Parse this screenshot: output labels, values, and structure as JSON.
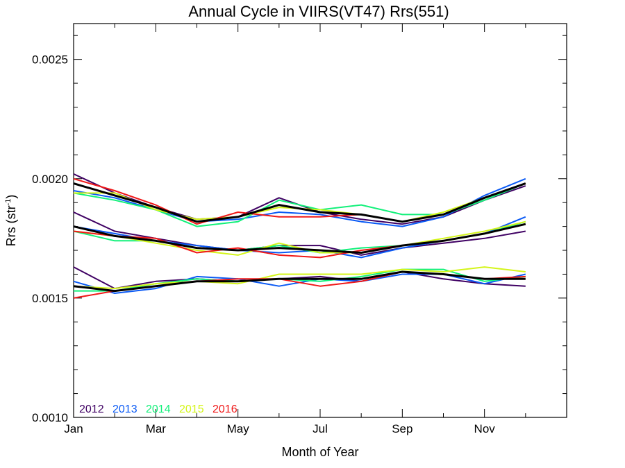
{
  "chart_data": {
    "type": "line",
    "title": "Annual Cycle in VIIRS(VT47) Rrs(551)",
    "xlabel": "Month of Year",
    "ylabel_main": "Rrs (str",
    "ylabel_sup": "-1",
    "ylabel_close": ")",
    "xlim": [
      1,
      13
    ],
    "ylim": [
      0.001,
      0.00265
    ],
    "xticks": [
      {
        "value": 1,
        "label": "Jan"
      },
      {
        "value": 3,
        "label": "Mar"
      },
      {
        "value": 5,
        "label": "May"
      },
      {
        "value": 7,
        "label": "Jul"
      },
      {
        "value": 9,
        "label": "Sep"
      },
      {
        "value": 11,
        "label": "Nov"
      }
    ],
    "x_minor_ticks": [
      2,
      4,
      6,
      8,
      10,
      12
    ],
    "yticks": [
      {
        "value": 0.001,
        "label": "0.0010"
      },
      {
        "value": 0.0015,
        "label": "0.0015"
      },
      {
        "value": 0.002,
        "label": "0.0020"
      },
      {
        "value": 0.0025,
        "label": "0.0025"
      }
    ],
    "y_minor_ticks": [
      0.0011,
      0.0012,
      0.0013,
      0.0014,
      0.0016,
      0.0017,
      0.0018,
      0.0019,
      0.0021,
      0.0022,
      0.0023,
      0.0024,
      0.0026
    ],
    "x": [
      1,
      2,
      3,
      4,
      5,
      6,
      7,
      8,
      9,
      10,
      11,
      12
    ],
    "legend_placement": "bottom-left",
    "groups": [
      {
        "series": [
          {
            "name": "2012",
            "color": "#3f0063",
            "values": [
              0.00202,
              0.00194,
              0.00188,
              0.00183,
              0.00184,
              0.00192,
              0.00186,
              0.00183,
              0.00181,
              0.00184,
              0.00191,
              0.00197
            ]
          },
          {
            "name": "2013",
            "color": "#0a5af5",
            "values": [
              0.00195,
              0.00192,
              0.00187,
              0.00182,
              0.00183,
              0.00186,
              0.00185,
              0.00182,
              0.0018,
              0.00184,
              0.00193,
              0.002
            ]
          },
          {
            "name": "2014",
            "color": "#12f07a",
            "values": [
              0.00194,
              0.00191,
              0.00187,
              0.0018,
              0.00182,
              0.00191,
              0.00187,
              0.00189,
              0.00185,
              0.00185,
              0.00191,
              0.00198
            ]
          },
          {
            "name": "2015",
            "color": "#d4f51a",
            "values": [
              0.00194,
              0.00194,
              0.00187,
              0.00183,
              0.00184,
              0.00188,
              0.00187,
              0.00185,
              0.00182,
              0.00186,
              0.00192,
              0.00198
            ]
          },
          {
            "name": "2016",
            "color": "#f01818",
            "values": [
              0.002,
              0.00195,
              0.00189,
              0.00181,
              0.00186,
              0.00184,
              0.00184,
              0.00185,
              0.00182,
              0.00185,
              0.00192,
              0.00198
            ]
          }
        ],
        "mean": {
          "color": "#000000",
          "values": [
            0.00198,
            0.00193,
            0.00188,
            0.00182,
            0.00184,
            0.00189,
            0.00186,
            0.00185,
            0.00182,
            0.00185,
            0.00192,
            0.00198
          ]
        }
      },
      {
        "series": [
          {
            "name": "2012",
            "color": "#3f0063",
            "values": [
              0.00186,
              0.00178,
              0.00175,
              0.00172,
              0.0017,
              0.00172,
              0.00172,
              0.00168,
              0.00171,
              0.00173,
              0.00175,
              0.00178
            ]
          },
          {
            "name": "2013",
            "color": "#0a5af5",
            "values": [
              0.0018,
              0.00177,
              0.00174,
              0.00172,
              0.0017,
              0.00169,
              0.0017,
              0.00167,
              0.00171,
              0.00174,
              0.00177,
              0.00184
            ]
          },
          {
            "name": "2014",
            "color": "#12f07a",
            "values": [
              0.00178,
              0.00174,
              0.00174,
              0.00171,
              0.0017,
              0.00172,
              0.00169,
              0.00171,
              0.00172,
              0.00174,
              0.00177,
              0.00182
            ]
          },
          {
            "name": "2015",
            "color": "#d4f51a",
            "values": [
              0.00178,
              0.00176,
              0.00173,
              0.0017,
              0.00168,
              0.00173,
              0.00169,
              0.00169,
              0.00172,
              0.00175,
              0.00178,
              0.00182
            ]
          },
          {
            "name": "2016",
            "color": "#f01818",
            "values": [
              0.00178,
              0.00176,
              0.00175,
              0.00169,
              0.00171,
              0.00168,
              0.00167,
              0.0017,
              0.00172,
              0.00174,
              0.00177,
              0.00181
            ]
          }
        ],
        "mean": {
          "color": "#000000",
          "values": [
            0.0018,
            0.00176,
            0.00174,
            0.00171,
            0.0017,
            0.00171,
            0.0017,
            0.00169,
            0.00172,
            0.00174,
            0.00177,
            0.00181
          ]
        }
      },
      {
        "series": [
          {
            "name": "2012",
            "color": "#3f0063",
            "values": [
              0.00163,
              0.00154,
              0.00157,
              0.00158,
              0.00157,
              0.00158,
              0.00159,
              0.00157,
              0.00161,
              0.00158,
              0.00156,
              0.00155
            ]
          },
          {
            "name": "2013",
            "color": "#0a5af5",
            "values": [
              0.00157,
              0.00152,
              0.00154,
              0.00159,
              0.00158,
              0.00155,
              0.00158,
              0.00157,
              0.0016,
              0.0016,
              0.00156,
              0.0016
            ]
          },
          {
            "name": "2014",
            "color": "#12f07a",
            "values": [
              0.00153,
              0.00153,
              0.00156,
              0.00158,
              0.00157,
              0.00158,
              0.00157,
              0.00159,
              0.00162,
              0.00162,
              0.00157,
              0.00159
            ]
          },
          {
            "name": "2015",
            "color": "#d4f51a",
            "values": [
              0.00155,
              0.00154,
              0.00156,
              0.00157,
              0.00156,
              0.0016,
              0.0016,
              0.0016,
              0.00162,
              0.00161,
              0.00163,
              0.00161
            ]
          },
          {
            "name": "2016",
            "color": "#f01818",
            "values": [
              0.0015,
              0.00153,
              0.00155,
              0.00157,
              0.00158,
              0.00158,
              0.00155,
              0.00157,
              0.00161,
              0.0016,
              0.00158,
              0.00159
            ]
          }
        ],
        "mean": {
          "color": "#000000",
          "values": [
            0.00155,
            0.00153,
            0.00155,
            0.00157,
            0.00157,
            0.00158,
            0.00158,
            0.00158,
            0.00161,
            0.0016,
            0.00158,
            0.00158
          ]
        }
      }
    ],
    "legend": [
      {
        "name": "2012",
        "color": "#3f0063"
      },
      {
        "name": "2013",
        "color": "#0a5af5"
      },
      {
        "name": "2014",
        "color": "#12f07a"
      },
      {
        "name": "2015",
        "color": "#d4f51a"
      },
      {
        "name": "2016",
        "color": "#f01818"
      }
    ]
  }
}
